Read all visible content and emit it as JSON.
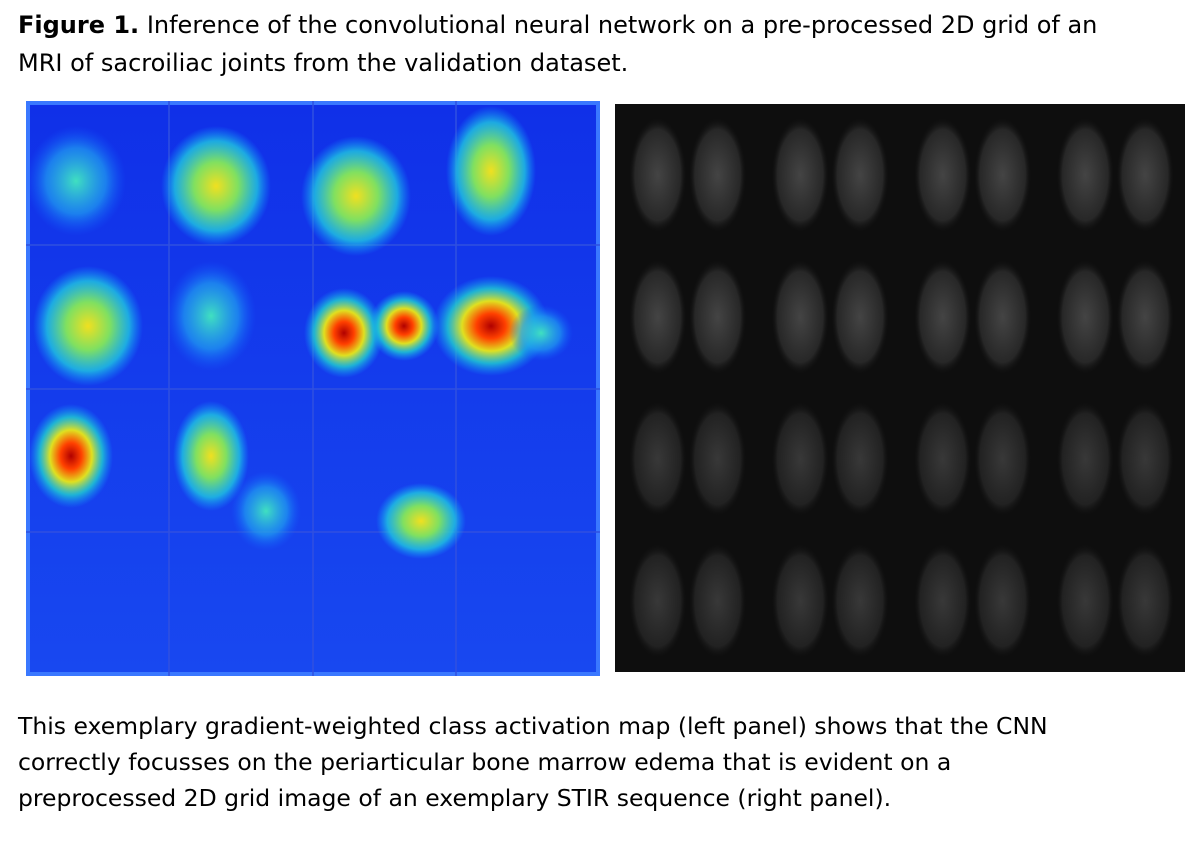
{
  "figure": {
    "label": "Figure 1.",
    "caption": "Inference of the convolutional neural network on a pre-processed 2D grid of an MRI of sacroiliac joints from the validation dataset."
  },
  "description": "This exemplary gradient-weighted class activation map (left panel) shows that the CNN correctly focusses on the periarticular bone marrow edema that is evident on a preprocessed 2D grid image of an exemplary STIR sequence (right panel)."
}
